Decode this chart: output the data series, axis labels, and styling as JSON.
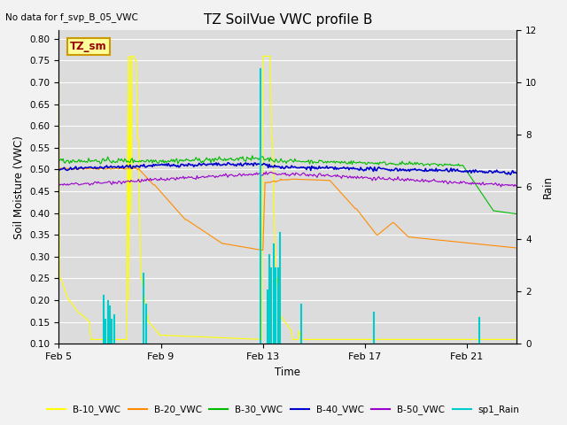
{
  "title": "TZ SoilVue VWC profile B",
  "no_data_label": "No data for f_svp_B_05_VWC",
  "tz_sm_label": "TZ_sm",
  "xlabel": "Time",
  "ylabel_left": "Soil Moisture (VWC)",
  "ylabel_right": "Rain",
  "ylim_left": [
    0.1,
    0.82
  ],
  "ylim_right": [
    0,
    12
  ],
  "yticks_left": [
    0.1,
    0.15,
    0.2,
    0.25,
    0.3,
    0.35,
    0.4,
    0.45,
    0.5,
    0.55,
    0.6,
    0.65,
    0.7,
    0.75,
    0.8
  ],
  "yticks_right": [
    0,
    2,
    4,
    6,
    8,
    10,
    12
  ],
  "xtick_labels": [
    "Feb 5",
    "Feb 9",
    "Feb 13",
    "Feb 17",
    "Feb 21"
  ],
  "xtick_positions": [
    0,
    96,
    192,
    288,
    384
  ],
  "total_points": 432,
  "colors": {
    "B10": "#ffff00",
    "B20": "#ff8c00",
    "B30": "#00bb00",
    "B40": "#0000cc",
    "B50": "#9900cc",
    "rain": "#00cccc",
    "bg": "#dcdcdc",
    "grid": "#ffffff",
    "tz_sm_fg": "#990000",
    "tz_sm_bg": "#ffff99",
    "tz_sm_border": "#cc9900"
  },
  "legend_entries": [
    "B-10_VWC",
    "B-20_VWC",
    "B-30_VWC",
    "B-40_VWC",
    "B-50_VWC",
    "sp1_Rain"
  ]
}
